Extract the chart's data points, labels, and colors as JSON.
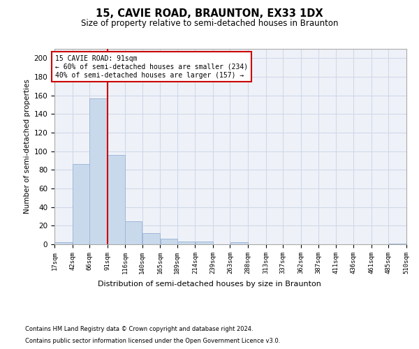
{
  "title": "15, CAVIE ROAD, BRAUNTON, EX33 1DX",
  "subtitle": "Size of property relative to semi-detached houses in Braunton",
  "xlabel": "Distribution of semi-detached houses by size in Braunton",
  "ylabel": "Number of semi-detached properties",
  "bar_color": "#c9d9ec",
  "bar_edgecolor": "#a0b8d8",
  "grid_color": "#d0d8e8",
  "background_color": "#eef2f8",
  "property_line_x": 91,
  "property_label": "15 CAVIE ROAD: 91sqm",
  "annotation_line1": "← 60% of semi-detached houses are smaller (234)",
  "annotation_line2": "40% of semi-detached houses are larger (157) →",
  "annotation_box_color": "#cc0000",
  "bin_edges": [
    17,
    42,
    66,
    91,
    116,
    140,
    165,
    189,
    214,
    239,
    263,
    288,
    313,
    337,
    362,
    387,
    411,
    436,
    461,
    485,
    510
  ],
  "bar_heights": [
    2,
    86,
    157,
    96,
    25,
    12,
    6,
    3,
    3,
    0,
    2,
    0,
    0,
    0,
    0,
    0,
    0,
    0,
    0,
    1
  ],
  "ylim": [
    0,
    210
  ],
  "yticks": [
    0,
    20,
    40,
    60,
    80,
    100,
    120,
    140,
    160,
    180,
    200
  ],
  "footnote1": "Contains HM Land Registry data © Crown copyright and database right 2024.",
  "footnote2": "Contains public sector information licensed under the Open Government Licence v3.0."
}
